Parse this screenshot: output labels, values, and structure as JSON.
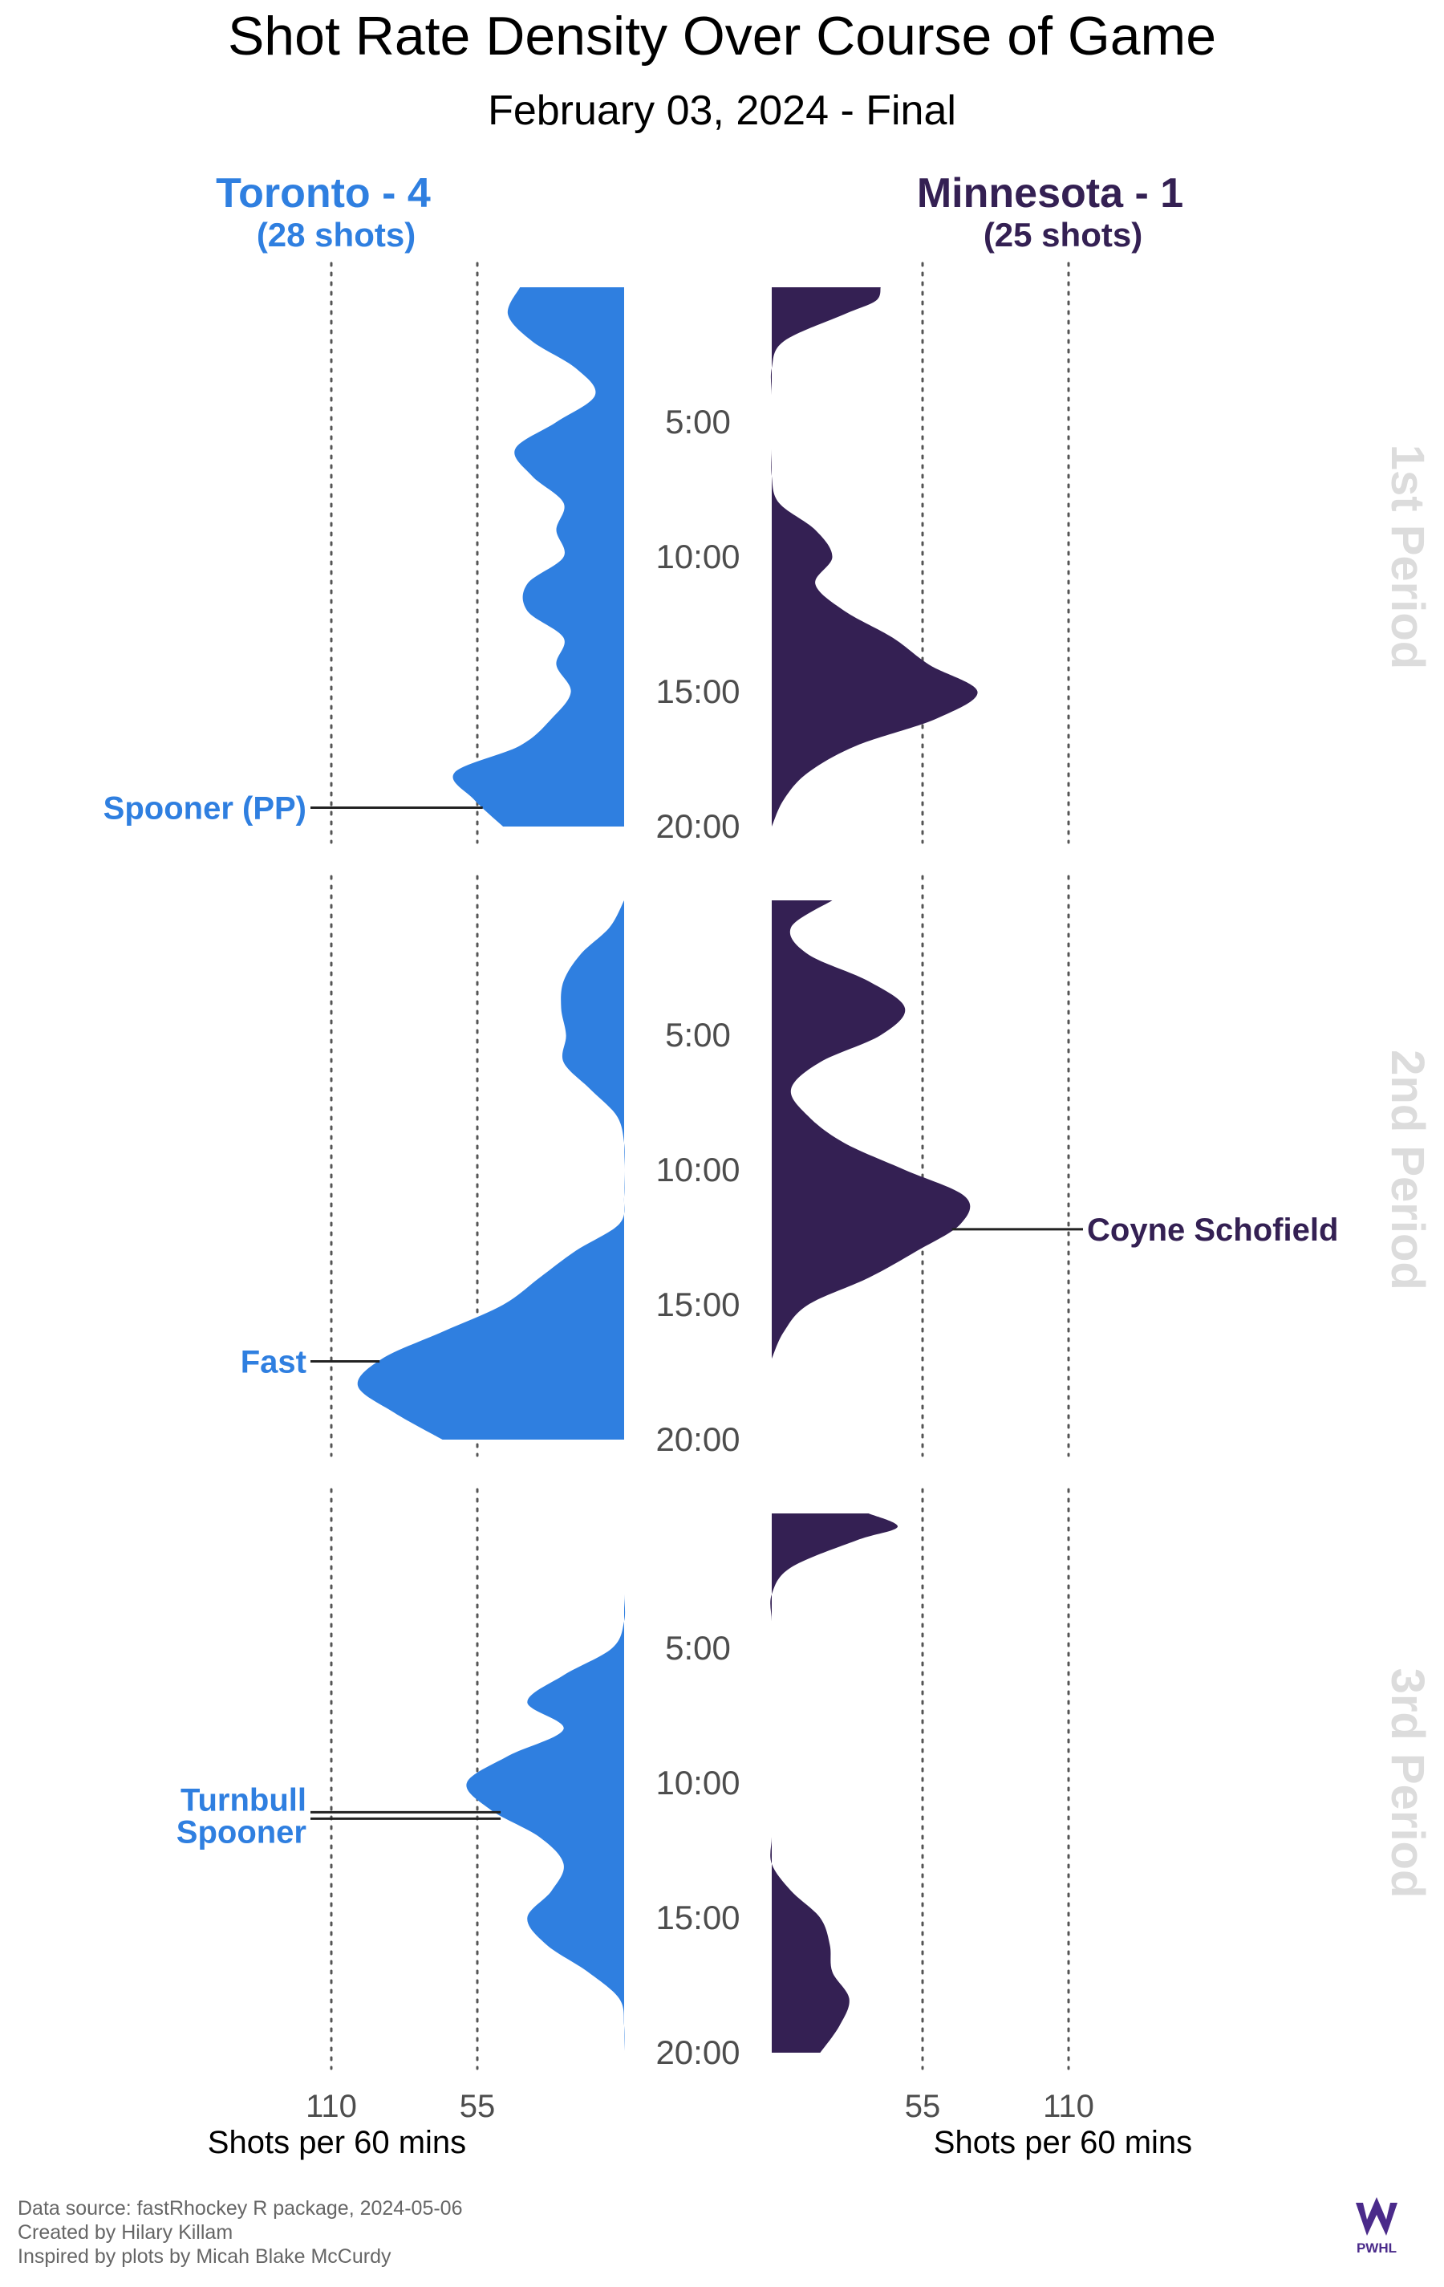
{
  "chart_data": {
    "type": "area",
    "title": "Shot Rate Density Over Course of Game",
    "subtitle": "February 03, 2024 - Final",
    "xlabel": "Shots per 60 mins",
    "xlim": [
      0,
      110
    ],
    "x_ticks": [
      "110",
      "55"
    ],
    "x_ticks_right": [
      "55",
      "110"
    ],
    "y_ticks": [
      "5:00",
      "10:00",
      "15:00",
      "20:00"
    ],
    "periods": [
      "1st Period",
      "2nd Period",
      "3rd Period"
    ],
    "teams": [
      {
        "name": "Toronto - 4",
        "shots_label": "(28 shots)",
        "color": "#2F7FE0",
        "side": "left",
        "density": [
          [
            [
              0,
              43
            ],
            [
              1,
              48
            ],
            [
              2,
              38
            ],
            [
              3,
              20
            ],
            [
              4,
              12
            ],
            [
              5,
              28
            ],
            [
              6,
              45
            ],
            [
              7,
              38
            ],
            [
              8,
              25
            ],
            [
              9,
              28
            ],
            [
              10,
              25
            ],
            [
              11,
              40
            ],
            [
              12,
              40
            ],
            [
              13,
              25
            ],
            [
              14,
              28
            ],
            [
              15,
              22
            ],
            [
              16,
              30
            ],
            [
              17,
              43
            ],
            [
              18,
              70
            ],
            [
              19,
              62
            ],
            [
              20,
              50
            ]
          ],
          [
            [
              0,
              0
            ],
            [
              1,
              6
            ],
            [
              2,
              18
            ],
            [
              3,
              25
            ],
            [
              4,
              26
            ],
            [
              5,
              24
            ],
            [
              6,
              25
            ],
            [
              7,
              14
            ],
            [
              8,
              3
            ],
            [
              9,
              0
            ],
            [
              10,
              0
            ],
            [
              11,
              0
            ],
            [
              12,
              2
            ],
            [
              13,
              20
            ],
            [
              14,
              35
            ],
            [
              15,
              50
            ],
            [
              16,
              75
            ],
            [
              17,
              100
            ],
            [
              18,
              110
            ],
            [
              19,
              95
            ],
            [
              20,
              75
            ]
          ],
          [
            [
              0,
              0
            ],
            [
              1,
              0
            ],
            [
              2,
              0
            ],
            [
              3,
              0
            ],
            [
              4,
              0
            ],
            [
              5,
              5
            ],
            [
              6,
              25
            ],
            [
              7,
              40
            ],
            [
              8,
              25
            ],
            [
              9,
              48
            ],
            [
              10,
              65
            ],
            [
              11,
              55
            ],
            [
              12,
              35
            ],
            [
              13,
              25
            ],
            [
              14,
              30
            ],
            [
              15,
              40
            ],
            [
              16,
              32
            ],
            [
              17,
              15
            ],
            [
              18,
              2
            ],
            [
              19,
              0
            ],
            [
              20,
              0
            ]
          ]
        ]
      },
      {
        "name": "Minnesota - 1",
        "shots_label": "(25 shots)",
        "color": "#342053",
        "side": "right",
        "density": [
          [
            [
              0,
              45
            ],
            [
              0.5,
              43
            ],
            [
              1,
              30
            ],
            [
              2,
              5
            ],
            [
              3,
              0
            ],
            [
              4,
              0
            ],
            [
              5,
              0
            ],
            [
              6,
              0
            ],
            [
              7,
              0
            ],
            [
              8,
              3
            ],
            [
              9,
              18
            ],
            [
              10,
              25
            ],
            [
              11,
              18
            ],
            [
              12,
              30
            ],
            [
              13,
              50
            ],
            [
              14,
              65
            ],
            [
              15,
              85
            ],
            [
              16,
              68
            ],
            [
              17,
              35
            ],
            [
              18,
              15
            ],
            [
              19,
              5
            ],
            [
              20,
              0
            ]
          ],
          [
            [
              0,
              25
            ],
            [
              1,
              8
            ],
            [
              2,
              15
            ],
            [
              3,
              40
            ],
            [
              4,
              55
            ],
            [
              5,
              45
            ],
            [
              6,
              20
            ],
            [
              7,
              8
            ],
            [
              8,
              15
            ],
            [
              9,
              30
            ],
            [
              10,
              55
            ],
            [
              11,
              80
            ],
            [
              12,
              78
            ],
            [
              13,
              60
            ],
            [
              14,
              40
            ],
            [
              15,
              15
            ],
            [
              16,
              5
            ],
            [
              17,
              0
            ]
          ],
          [
            [
              0,
              40
            ],
            [
              0.5,
              52
            ],
            [
              1,
              35
            ],
            [
              2,
              8
            ],
            [
              3,
              0
            ],
            [
              4,
              0
            ],
            [
              5,
              0
            ],
            [
              6,
              0
            ],
            [
              7,
              0
            ],
            [
              8,
              0
            ],
            [
              9,
              0
            ],
            [
              10,
              0
            ],
            [
              11,
              0
            ],
            [
              12,
              0
            ],
            [
              13,
              0
            ],
            [
              14,
              8
            ],
            [
              15,
              20
            ],
            [
              16,
              24
            ],
            [
              17,
              25
            ],
            [
              18,
              32
            ],
            [
              19,
              28
            ],
            [
              20,
              20
            ]
          ]
        ]
      }
    ],
    "goals": [
      {
        "team": "Toronto - 4",
        "period": 1,
        "time": 19.3,
        "labels": [
          "Spooner (PP)"
        ]
      },
      {
        "team": "Toronto - 4",
        "period": 2,
        "time": 17.1,
        "labels": [
          "Fast"
        ]
      },
      {
        "team": "Toronto - 4",
        "period": 3,
        "time": 11.2,
        "labels": [
          "Turnbull",
          "Spooner"
        ]
      },
      {
        "team": "Minnesota - 1",
        "period": 2,
        "time": 12.2,
        "labels": [
          "Coyne Schofield"
        ]
      }
    ]
  },
  "footer": {
    "lines": [
      "Data source: fastRhockey R package, 2024-05-06",
      "Created by Hilary Killam",
      "Inspired by plots by Micah Blake McCurdy"
    ],
    "logo_text": "PWHL"
  }
}
